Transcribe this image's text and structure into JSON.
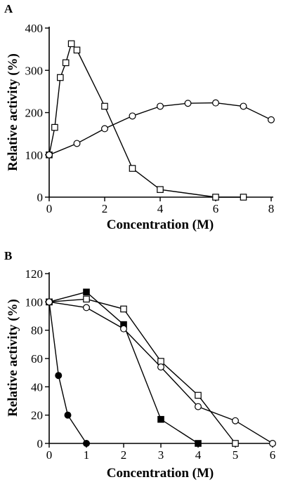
{
  "chart_data": [
    {
      "panel": "A",
      "type": "line",
      "xlabel": "Concentration (M)",
      "ylabel": "Relative activity (%)",
      "xlim": [
        0,
        8
      ],
      "ylim": [
        0,
        400
      ],
      "xticks": [
        0,
        2,
        4,
        6,
        8
      ],
      "yticks": [
        0,
        100,
        200,
        300,
        400
      ],
      "grid": false,
      "series": [
        {
          "marker": "open-square",
          "x": [
            0,
            0.2,
            0.4,
            0.6,
            0.8,
            1,
            2,
            3,
            4,
            6,
            7
          ],
          "y": [
            100,
            165,
            283,
            318,
            363,
            348,
            215,
            68,
            18,
            0,
            0
          ]
        },
        {
          "marker": "open-circle",
          "x": [
            0,
            1,
            2,
            3,
            4,
            5,
            6,
            7,
            8
          ],
          "y": [
            100,
            127,
            162,
            192,
            215,
            222,
            223,
            215,
            183
          ]
        }
      ]
    },
    {
      "panel": "B",
      "type": "line",
      "xlabel": "Concentration (M)",
      "ylabel": "Relative activity (%)",
      "xlim": [
        0,
        6
      ],
      "ylim": [
        0,
        120
      ],
      "xticks": [
        0,
        1,
        2,
        3,
        4,
        5,
        6
      ],
      "yticks": [
        0,
        20,
        40,
        60,
        80,
        100,
        120
      ],
      "grid": false,
      "series": [
        {
          "marker": "filled-circle",
          "x": [
            0,
            0.25,
            0.5,
            1
          ],
          "y": [
            100,
            48,
            20,
            0
          ]
        },
        {
          "marker": "filled-square",
          "x": [
            0,
            1,
            2,
            3,
            4
          ],
          "y": [
            100,
            107,
            84,
            17,
            0
          ]
        },
        {
          "marker": "open-square",
          "x": [
            0,
            1,
            2,
            3,
            4,
            5
          ],
          "y": [
            100,
            102,
            95,
            58,
            34,
            0
          ]
        },
        {
          "marker": "open-circle",
          "x": [
            0,
            1,
            2,
            3,
            4,
            5,
            6
          ],
          "y": [
            100,
            96,
            81,
            54,
            26,
            16,
            0
          ]
        }
      ]
    }
  ]
}
